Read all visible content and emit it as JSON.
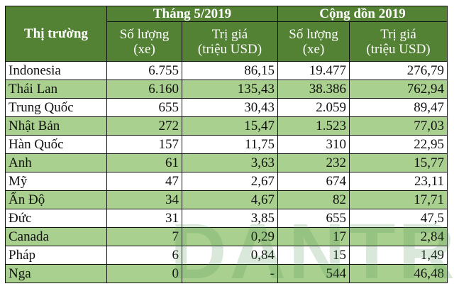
{
  "header": {
    "market": "Thị trường",
    "group1": "Tháng 5/2019",
    "group2": "Cộng dồn 2019",
    "qty": "Số lượng\n(xe)",
    "value": "Trị giá\n(triệu USD)"
  },
  "rows": [
    {
      "market": "Indonesia",
      "m_qty": "6.755",
      "m_val": "86,15",
      "c_qty": "19.477",
      "c_val": "276,79"
    },
    {
      "market": "Thái Lan",
      "m_qty": "6.160",
      "m_val": "135,43",
      "c_qty": "38.386",
      "c_val": "762,94"
    },
    {
      "market": "Trung Quốc",
      "m_qty": "655",
      "m_val": "30,43",
      "c_qty": "2.059",
      "c_val": "89,47"
    },
    {
      "market": "Nhật Bản",
      "m_qty": "272",
      "m_val": "15,47",
      "c_qty": "1.523",
      "c_val": "77,03"
    },
    {
      "market": "Hàn Quốc",
      "m_qty": "157",
      "m_val": "11,75",
      "c_qty": "310",
      "c_val": "22,95"
    },
    {
      "market": "Anh",
      "m_qty": "61",
      "m_val": "3,63",
      "c_qty": "232",
      "c_val": "15,77"
    },
    {
      "market": "Mỹ",
      "m_qty": "47",
      "m_val": "2,67",
      "c_qty": "674",
      "c_val": "23,11"
    },
    {
      "market": "Ấn Độ",
      "m_qty": "34",
      "m_val": "4,67",
      "c_qty": "82",
      "c_val": "17,71"
    },
    {
      "market": "Đức",
      "m_qty": "31",
      "m_val": "3,85",
      "c_qty": "655",
      "c_val": "47,5"
    },
    {
      "market": "Canada",
      "m_qty": "7",
      "m_val": "0,29",
      "c_qty": "17",
      "c_val": "2,84"
    },
    {
      "market": "Pháp",
      "m_qty": "6",
      "m_val": "0,84",
      "c_qty": "15",
      "c_val": "1,49"
    },
    {
      "market": "Nga",
      "m_qty": "0",
      "m_val": "-",
      "c_qty": "544",
      "c_val": "46,48"
    }
  ],
  "watermark": "DANTRI",
  "colors": {
    "header": "#548235",
    "alt_row": "#a9d08e"
  }
}
